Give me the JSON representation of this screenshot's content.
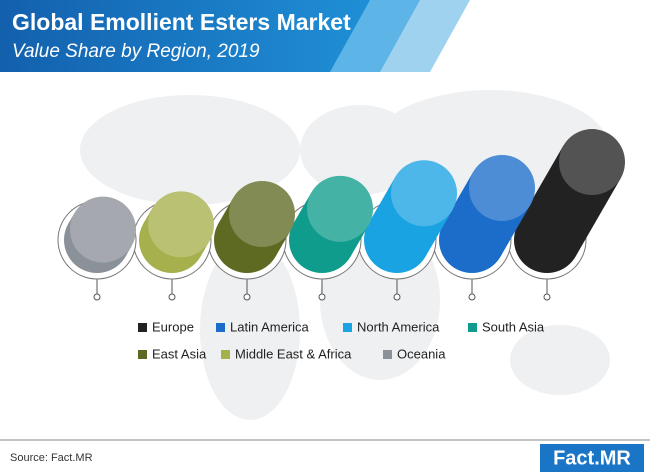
{
  "chart_data": {
    "type": "cylinder",
    "title": "Global Emollient Esters Market",
    "subtitle": "Value Share by Region, 2019",
    "categories": [
      "Europe",
      "Latin America",
      "North America",
      "South Asia",
      "East Asia",
      "Middle East & Africa",
      "Oceania"
    ],
    "values": [
      30,
      20,
      18,
      12,
      10,
      6,
      4
    ],
    "colors": [
      "#222222",
      "#1b6dc9",
      "#1aa3e2",
      "#0f9c8c",
      "#5e6a22",
      "#a6b04c",
      "#8b9199"
    ],
    "source": "Source: Fact.MR",
    "logo": "Fact.MR"
  }
}
